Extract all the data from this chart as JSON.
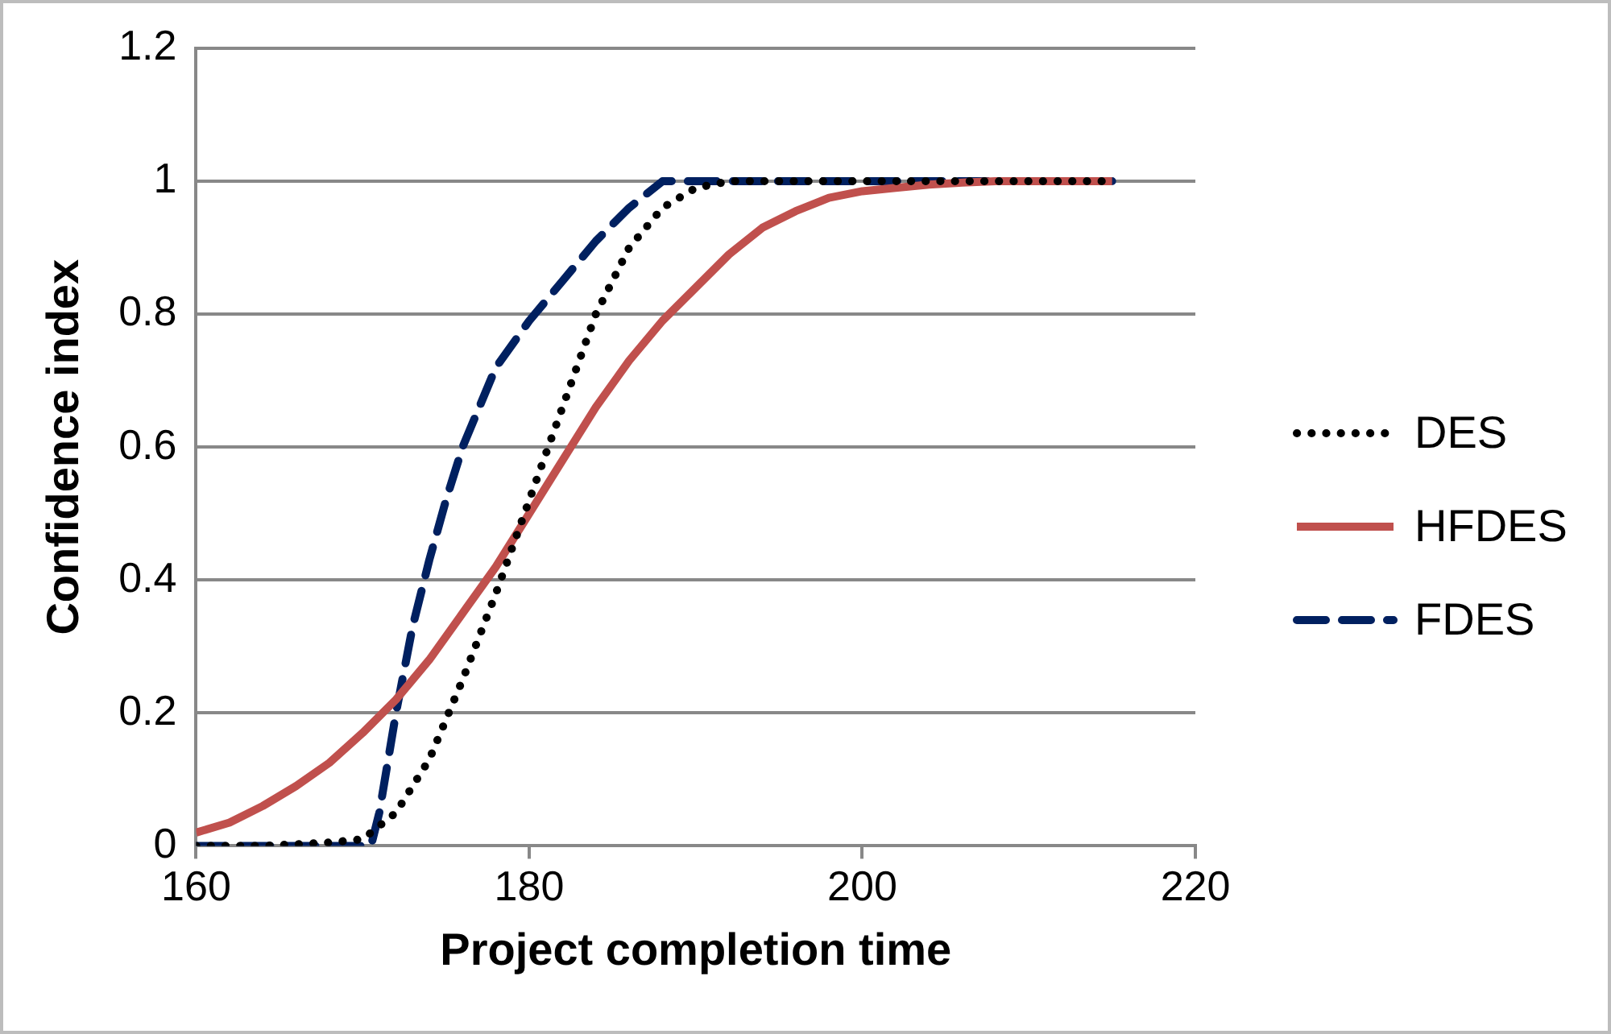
{
  "chart_data": {
    "type": "line",
    "xlabel": "Project completion time",
    "ylabel": "Confidence index",
    "xlim": [
      160,
      220
    ],
    "xticks": [
      160,
      180,
      200,
      220
    ],
    "ylim": [
      0,
      1.2
    ],
    "yticks": [
      0,
      0.2,
      0.4,
      0.6,
      0.8,
      1,
      1.2
    ],
    "grid": "y",
    "legend": "right",
    "marker": "none",
    "series": [
      {
        "name": "DES",
        "color": "#000000",
        "line_style": "dotted",
        "x": [
          160,
          164,
          168,
          170,
          172,
          174,
          176,
          178,
          180,
          182,
          184,
          186,
          188,
          190,
          192,
          215
        ],
        "values": [
          0,
          0,
          0.005,
          0.01,
          0.05,
          0.13,
          0.25,
          0.38,
          0.52,
          0.66,
          0.8,
          0.9,
          0.96,
          0.99,
          1,
          1
        ]
      },
      {
        "name": "HFDES",
        "color": "#c0504d",
        "line_style": "solid",
        "x": [
          160,
          162,
          164,
          166,
          168,
          170,
          172,
          174,
          176,
          178,
          180,
          182,
          184,
          186,
          188,
          190,
          192,
          194,
          196,
          198,
          200,
          202,
          204,
          206,
          208,
          215
        ],
        "values": [
          0.02,
          0.035,
          0.06,
          0.09,
          0.125,
          0.17,
          0.22,
          0.28,
          0.35,
          0.42,
          0.5,
          0.58,
          0.66,
          0.73,
          0.79,
          0.84,
          0.89,
          0.93,
          0.955,
          0.975,
          0.985,
          0.99,
          0.995,
          0.998,
          1,
          1
        ]
      },
      {
        "name": "FDES",
        "color": "#002060",
        "line_style": "dashed",
        "x": [
          160,
          170.5,
          171,
          172,
          173,
          174,
          175,
          176,
          178,
          180,
          182,
          184,
          186,
          188,
          190,
          215
        ],
        "values": [
          0,
          0,
          0.05,
          0.2,
          0.33,
          0.43,
          0.52,
          0.6,
          0.72,
          0.79,
          0.85,
          0.91,
          0.96,
          1,
          1,
          1
        ]
      }
    ]
  }
}
